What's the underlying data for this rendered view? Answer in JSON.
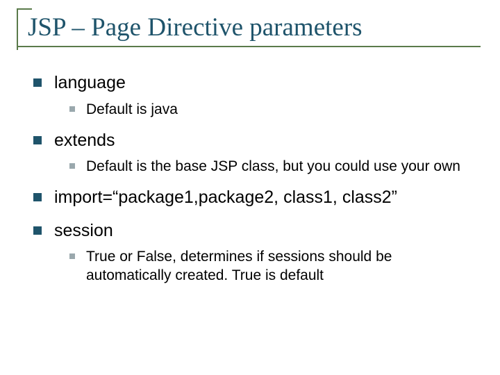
{
  "colors": {
    "decor_green": "#5a7a4a",
    "title_teal": "#1f546b",
    "bullet_teal": "#1f546b",
    "subbullet_gray": "#9aa8ad",
    "text": "#000000",
    "bg": "#ffffff"
  },
  "title": "JSP – Page Directive parameters",
  "items": [
    {
      "label": "language",
      "sub": [
        {
          "label": "Default is java"
        }
      ]
    },
    {
      "label": "extends",
      "sub": [
        {
          "label": "Default is the base JSP class, but you could use your own"
        }
      ]
    },
    {
      "label": "import=“package1,package2, class1, class2”",
      "sub": []
    },
    {
      "label": "session",
      "sub": [
        {
          "label": "True or False, determines if sessions should be automatically created. True is default"
        }
      ]
    }
  ]
}
